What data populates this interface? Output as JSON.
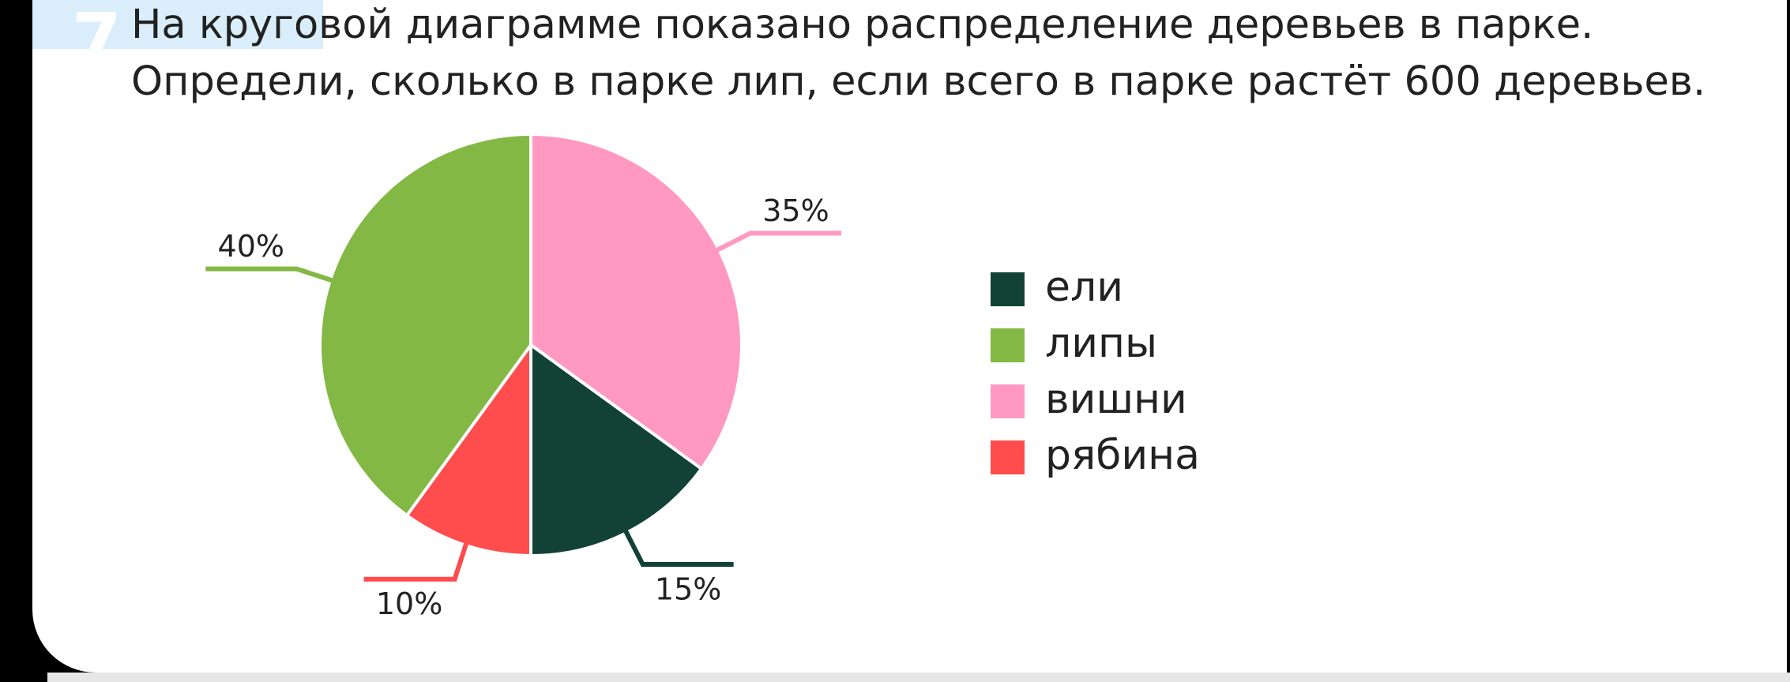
{
  "task_number": "7",
  "question": "На круговой диаграмме показано распределение деревьев в парке. Определи, сколько в парке лип, если всего в парке растёт 600 деревьев.",
  "chart_data": {
    "type": "pie",
    "categories": [
      "ели",
      "липы",
      "вишни",
      "рябина"
    ],
    "values": [
      15,
      40,
      35,
      10
    ],
    "value_labels": [
      "15%",
      "40%",
      "35%",
      "10%"
    ],
    "colors": [
      "#124236",
      "#84b844",
      "#ff99c2",
      "#ff4c4c"
    ],
    "legend": "right"
  }
}
